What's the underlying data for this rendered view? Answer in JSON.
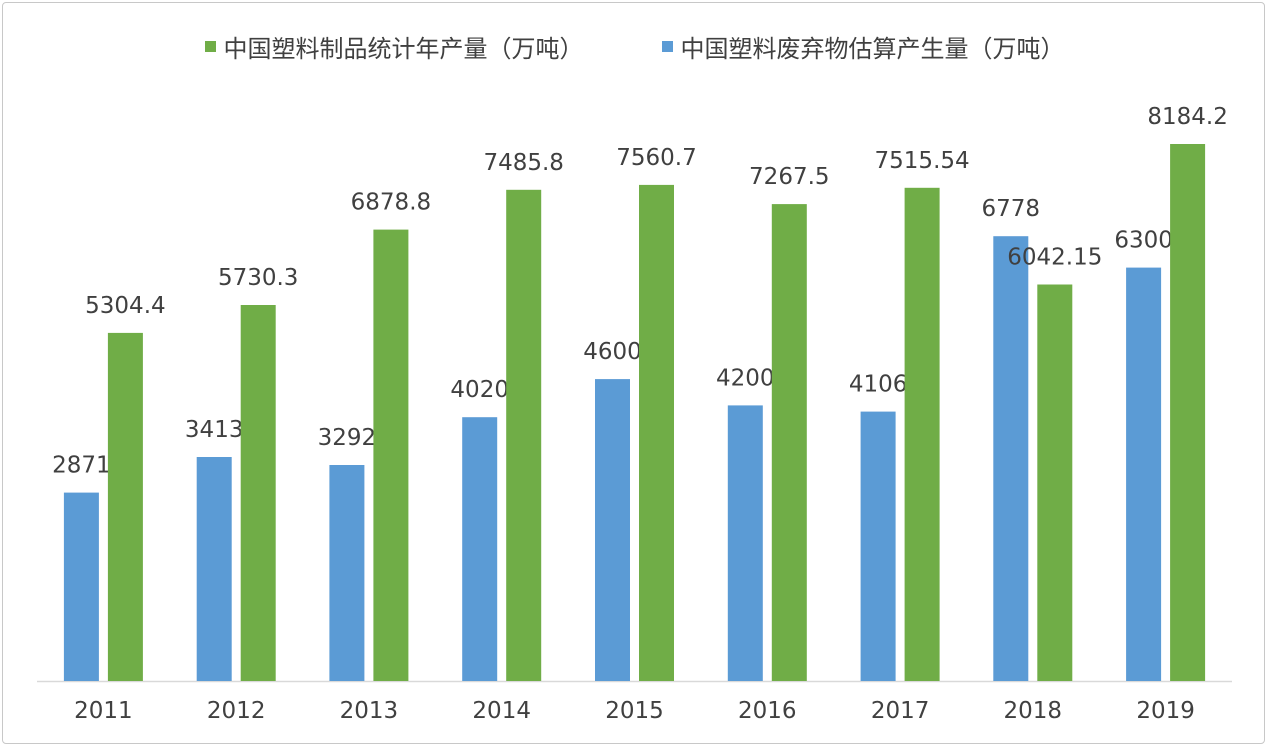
{
  "chart_data": {
    "type": "bar",
    "title": "",
    "xlabel": "",
    "ylabel": "",
    "ylim": [
      0,
      9000
    ],
    "grid": false,
    "legend_position": "top",
    "categories": [
      "2011",
      "2012",
      "2013",
      "2014",
      "2015",
      "2016",
      "2017",
      "2018",
      "2019"
    ],
    "series": [
      {
        "name": "中国塑料废弃物估算产生量（万吨）",
        "color": "#5b9bd5",
        "values": [
          2871,
          3413,
          3292,
          4020,
          4600,
          4200,
          4106,
          6778,
          6300
        ],
        "labels": [
          "2871",
          "3413",
          "3292",
          "4020",
          "4600",
          "4200",
          "4106",
          "6778",
          "6300"
        ]
      },
      {
        "name": "中国塑料制品统计年产量（万吨）",
        "color": "#70ad47",
        "values": [
          5304.4,
          5730.3,
          6878.8,
          7485.8,
          7560.7,
          7267.5,
          7515.54,
          6042.15,
          8184.2
        ],
        "labels": [
          "5304.4",
          "5730.3",
          "6878.8",
          "7485.8",
          "7560.7",
          "7267.5",
          "7515.54",
          "6042.15",
          "8184.2"
        ]
      }
    ]
  }
}
